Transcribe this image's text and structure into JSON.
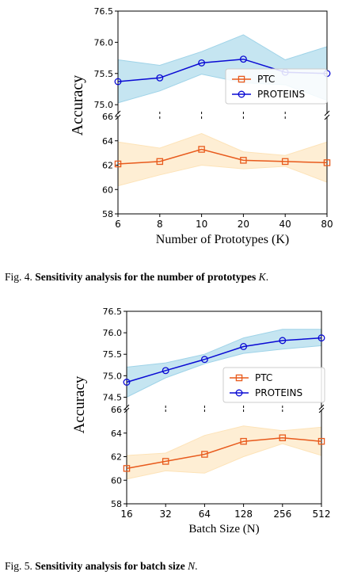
{
  "chart_data": [
    {
      "type": "line",
      "broken_axis": true,
      "categories": [
        "6",
        "8",
        "10",
        "20",
        "40",
        "80"
      ],
      "xlabel": "Number of Prototypes (K)",
      "ylabel": "Accuracy",
      "legend_position": "center-right",
      "upper_axis": {
        "ylim": [
          74.85,
          76.5
        ],
        "ticks": [
          "75.0",
          "75.5",
          "76.0",
          "76.5"
        ]
      },
      "lower_axis": {
        "ylim": [
          58,
          66
        ],
        "ticks": [
          "58",
          "60",
          "62",
          "64",
          "66"
        ]
      },
      "series": [
        {
          "name": "PROTEINS",
          "axis": "upper",
          "color": "#0a0ad4",
          "band_color": "#9fd3e8",
          "marker": "circle",
          "values": [
            75.37,
            75.43,
            75.67,
            75.73,
            75.52,
            75.5
          ],
          "lower": [
            75.03,
            75.22,
            75.49,
            75.35,
            75.32,
            75.07
          ],
          "upper": [
            75.72,
            75.63,
            75.85,
            76.12,
            75.72,
            75.93
          ]
        },
        {
          "name": "PTC",
          "axis": "lower",
          "color": "#e85a1c",
          "band_color": "#fde3b8",
          "marker": "square",
          "values": [
            62.1,
            62.3,
            63.3,
            62.4,
            62.3,
            62.2
          ],
          "lower": [
            60.3,
            61.2,
            62.0,
            61.7,
            61.9,
            60.6
          ],
          "upper": [
            63.9,
            63.4,
            64.6,
            63.1,
            62.8,
            63.9
          ]
        }
      ]
    },
    {
      "type": "line",
      "broken_axis": true,
      "categories": [
        "16",
        "32",
        "64",
        "128",
        "256",
        "512"
      ],
      "xlabel": "Batch Size (N)",
      "ylabel": "Accuracy",
      "legend_position": "center-right",
      "upper_axis": {
        "ylim": [
          74.25,
          76.5
        ],
        "ticks": [
          "74.5",
          "75.0",
          "75.5",
          "76.0",
          "76.5"
        ]
      },
      "lower_axis": {
        "ylim": [
          58,
          66
        ],
        "ticks": [
          "58",
          "60",
          "62",
          "64",
          "66"
        ]
      },
      "series": [
        {
          "name": "PROTEINS",
          "axis": "upper",
          "color": "#0a0ad4",
          "band_color": "#9fd3e8",
          "marker": "circle",
          "values": [
            74.85,
            75.12,
            75.38,
            75.68,
            75.82,
            75.88
          ],
          "lower": [
            74.5,
            74.95,
            75.28,
            75.52,
            75.62,
            75.7
          ],
          "upper": [
            75.2,
            75.3,
            75.5,
            75.88,
            76.08,
            76.08
          ]
        },
        {
          "name": "PTC",
          "axis": "lower",
          "color": "#e85a1c",
          "band_color": "#fde3b8",
          "marker": "square",
          "values": [
            61.0,
            61.6,
            62.2,
            63.3,
            63.6,
            63.3
          ],
          "lower": [
            60.1,
            60.8,
            60.6,
            62.0,
            63.1,
            62.1
          ],
          "upper": [
            62.1,
            62.3,
            63.8,
            64.6,
            64.2,
            64.5
          ]
        }
      ]
    }
  ],
  "captions": [
    {
      "label": "Fig. 4.",
      "text": "Sensitivity analysis for the number of prototypes",
      "symbol": "K",
      "end": "."
    },
    {
      "label": "Fig. 5.",
      "text": "Sensitivity analysis for batch size",
      "symbol": "N",
      "end": "."
    }
  ]
}
